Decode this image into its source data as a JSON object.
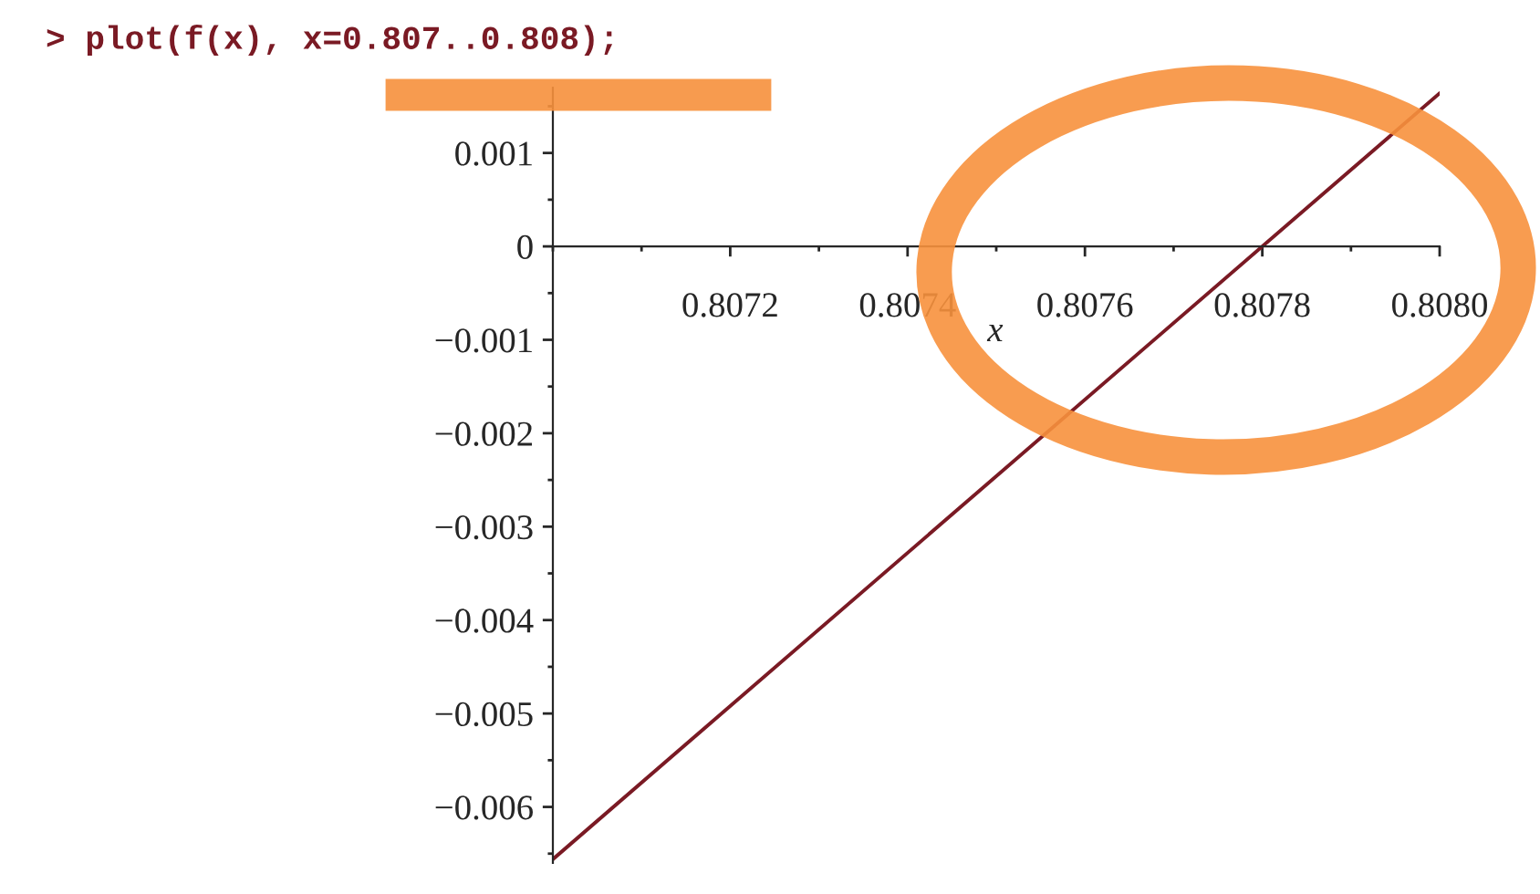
{
  "chart_data": {
    "type": "line",
    "xlabel": "x",
    "annotations": [
      "> plot(f(x), x=0.807..0.808);"
    ],
    "x": [
      0.807,
      0.808
    ],
    "series": [
      {
        "color": "#7a1a24",
        "values": [
          -0.00656,
          0.00164
        ]
      }
    ],
    "xlim": [
      0.807,
      0.808
    ],
    "ylim": [
      -0.0066,
      0.0017
    ],
    "xticks": [
      {
        "value": 0.8072,
        "label": "0.8072"
      },
      {
        "value": 0.8074,
        "label": "0.8074"
      },
      {
        "value": 0.8076,
        "label": "0.8076"
      },
      {
        "value": 0.8078,
        "label": "0.8078"
      },
      {
        "value": 0.808,
        "label": "0.8080"
      }
    ],
    "yticks": [
      0.001,
      0,
      {
        "value": -0.001,
        "label": "−0.001"
      },
      {
        "value": -0.002,
        "label": "−0.002"
      },
      {
        "value": -0.003,
        "label": "−0.003"
      },
      {
        "value": -0.004,
        "label": "−0.004"
      },
      {
        "value": -0.005,
        "label": "−0.005"
      },
      {
        "value": -0.006,
        "label": "−0.006"
      }
    ],
    "grid": false,
    "legend": false,
    "marker": "none",
    "line_style": "solid"
  }
}
